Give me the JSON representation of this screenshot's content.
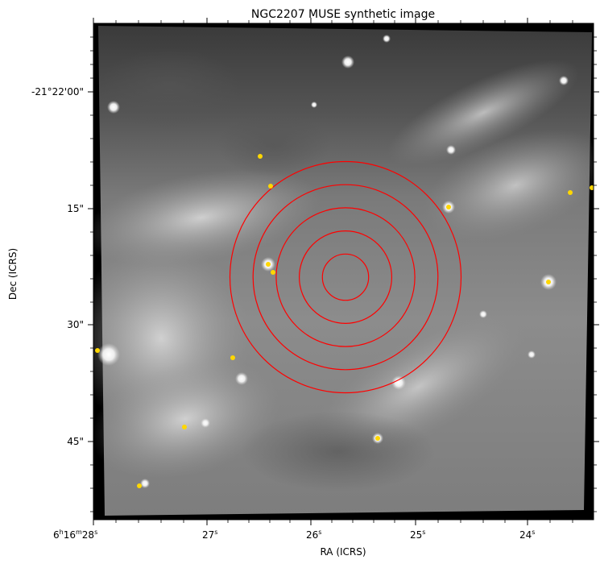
{
  "figure": {
    "title": "NGC2207 MUSE synthetic image",
    "xlabel": "RA (ICRS)",
    "ylabel": "Dec (ICRS)",
    "x_ticks": [
      {
        "h": "6",
        "m": "16",
        "s": "28",
        "label": "6h16m28s"
      },
      {
        "s": "27",
        "label": "27s"
      },
      {
        "s": "26",
        "label": "26s"
      },
      {
        "s": "25",
        "label": "25s"
      },
      {
        "s": "24",
        "label": "24s"
      }
    ],
    "y_ticks": [
      "-21°22'00\"",
      "15\"",
      "30\"",
      "45\""
    ],
    "colormap": "gray",
    "colors": {
      "apertures": "#ff0000",
      "markers": "#ffd700",
      "frame": "#000000"
    },
    "aperture_count": 5,
    "aperture_radii_relative": [
      1,
      2,
      3,
      4,
      5
    ],
    "marker_count": 14
  }
}
